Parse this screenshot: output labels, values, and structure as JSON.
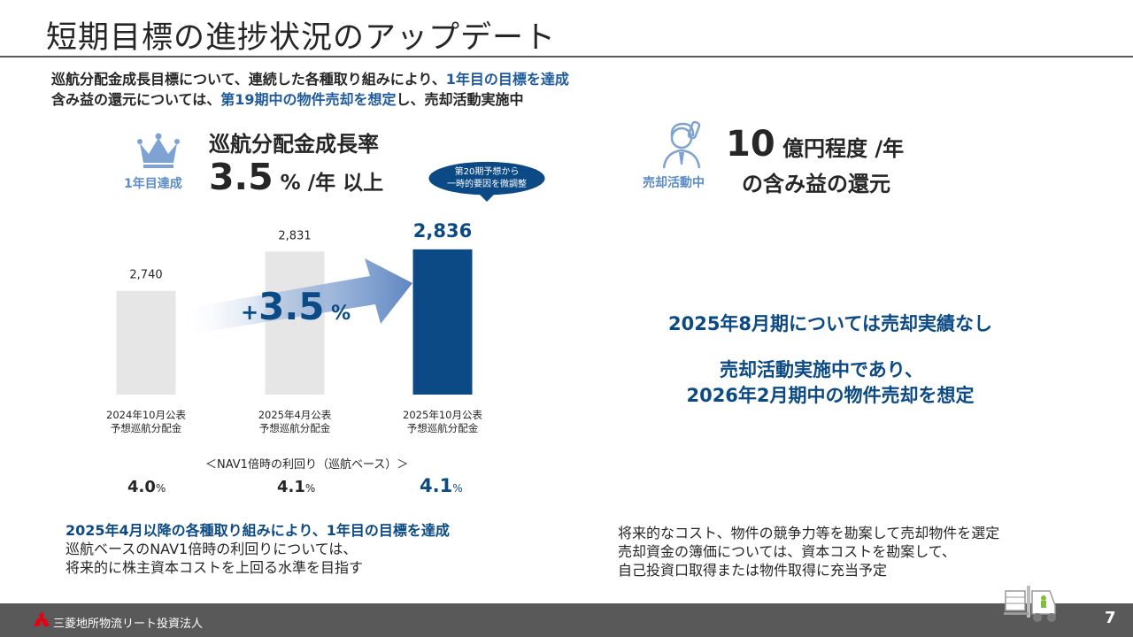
{
  "title": "短期目標の進捗状況のアップデート",
  "lead": {
    "line1_a": "巡航分配金成長目標について、連続した各種取り組みにより、",
    "line1_b": "1年目の目標を達成",
    "line2_a": "含み益の還元については、",
    "line2_b": "第19期中の物件売却を想定",
    "line2_c": "し、売却活動実施中"
  },
  "left_panel": {
    "icon_label": "1年目達成",
    "goal_name": "巡航分配金成長率",
    "goal_value": "3.5",
    "goal_unit": " % /年 以上",
    "bubble_line1": "第20期予想から",
    "bubble_line2": "一時的要因を微調整",
    "growth_sign": "+",
    "growth_value": "3.5",
    "growth_unit": " %",
    "yield_caption": "＜NAV1倍時の利回り（巡航ベース）＞",
    "yields": [
      {
        "value": "4.0",
        "unit": "%"
      },
      {
        "value": "4.1",
        "unit": "%"
      },
      {
        "value": "4.1",
        "unit": "%"
      }
    ],
    "bottom_line1": "2025年4月以降の各種取り組みにより、1年目の目標を達成",
    "bottom_line2": "巡航ベースのNAV1倍時の利回りについては、",
    "bottom_line3": "将来的に株主資本コストを上回る水準を目指す"
  },
  "chart_data": {
    "type": "bar",
    "categories": [
      "2024年10月公表\n予想巡航分配金",
      "2025年4月公表\n予想巡航分配金",
      "2025年10月公表\n予想巡航分配金"
    ],
    "category_lines": [
      [
        "2024年10月公表",
        "予想巡航分配金"
      ],
      [
        "2025年4月公表",
        "予想巡航分配金"
      ],
      [
        "2025年10月公表",
        "予想巡航分配金"
      ]
    ],
    "values": [
      2740,
      2831,
      2836
    ],
    "value_labels": [
      "2,740",
      "2,831",
      "2,836"
    ],
    "colors": [
      "#e6e6e6",
      "#e6e6e6",
      "#0b4a85"
    ],
    "ylim": [
      2500,
      2850
    ],
    "title": "",
    "xlabel": "",
    "ylabel": "",
    "grid": false
  },
  "right_panel": {
    "icon_label": "売却活動中",
    "amount_value": "10",
    "amount_unit": " 億円程度 /年",
    "amount_line2": "の含み益の還元",
    "msg1": "2025年8月期については売却実績なし",
    "msg2": "売却活動実施中であり、",
    "msg3": "2026年2月期中の物件売却を想定",
    "bottom_line1": "将来的なコスト、物件の競争力等を勘案して売却物件を選定",
    "bottom_line2": "売却資金の簿価については、資本コストを勘案して、",
    "bottom_line3": "自己投資口取得または物件取得に充当予定"
  },
  "footer": {
    "company": "三菱地所物流リート投資法人",
    "page": "7"
  },
  "colors": {
    "navy": "#0b4a85",
    "light_blue": "#5b8cc6",
    "bar_gray": "#e6e6e6",
    "footer_gray": "#595959"
  },
  "icons": [
    "crown-icon",
    "operator-icon",
    "mitsubishi-logo-icon",
    "forklift-icon"
  ]
}
